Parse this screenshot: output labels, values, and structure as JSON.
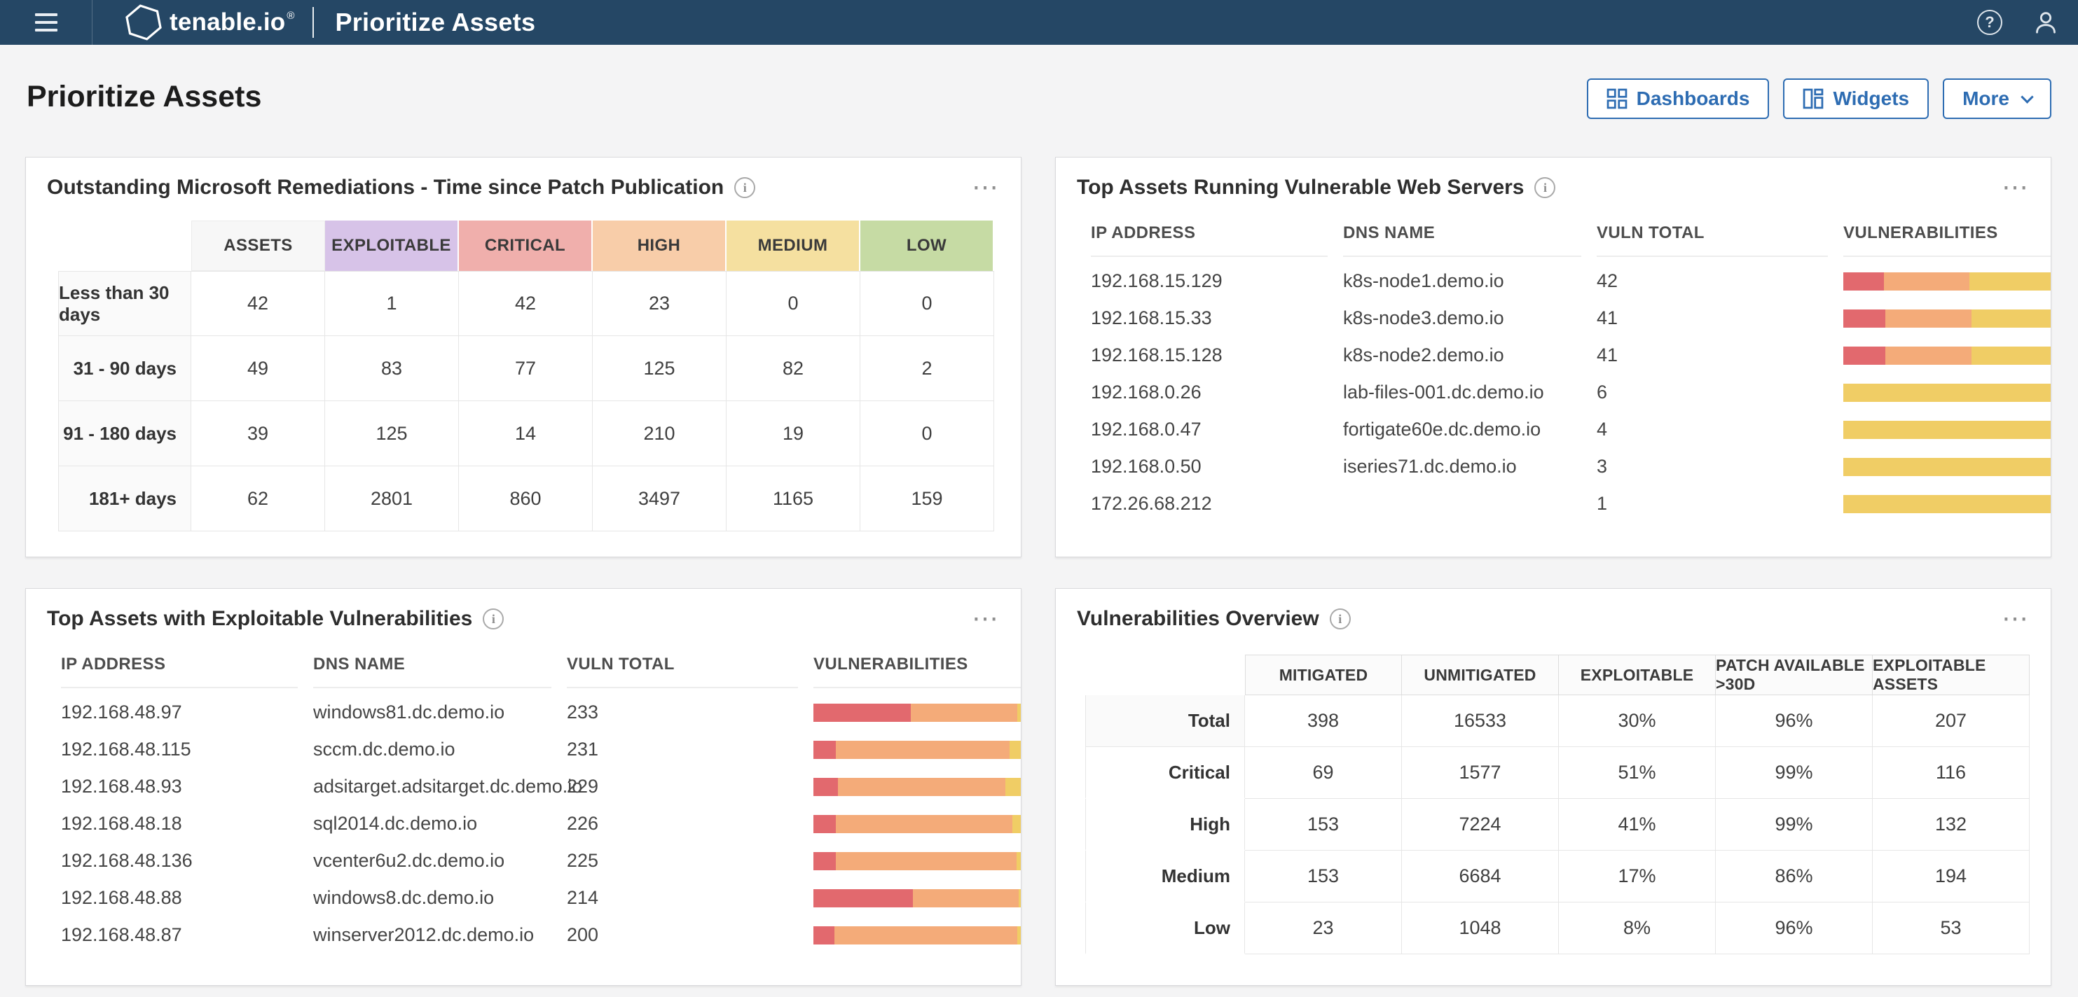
{
  "topbar": {
    "brand": "tenable.io",
    "brand_mark": "®",
    "title": "Prioritize Assets"
  },
  "page": {
    "title": "Prioritize Assets",
    "buttons": {
      "dashboards": "Dashboards",
      "widgets": "Widgets",
      "more": "More"
    }
  },
  "colors": {
    "topbar_bg": "#254765",
    "accent_blue": "#2d6cb2",
    "header_exploitable": "#d7c3e8",
    "header_critical": "#f0afac",
    "header_high": "#f8cda9",
    "header_medium": "#f5e0a0",
    "header_low": "#c6dba4",
    "bar_critical": "#e2696e",
    "bar_high": "#f4ab79",
    "bar_medium": "#f0cd65",
    "bar_low": "#93bd68"
  },
  "widgets": {
    "remediations": {
      "title": "Outstanding Microsoft Remediations - Time since Patch Publication",
      "columns": [
        "ASSETS",
        "EXPLOITABLE",
        "CRITICAL",
        "HIGH",
        "MEDIUM",
        "LOW"
      ],
      "rows": [
        {
          "label": "Less than 30 days",
          "values": [
            "42",
            "1",
            "42",
            "23",
            "0",
            "0"
          ]
        },
        {
          "label": "31 - 90 days",
          "values": [
            "49",
            "83",
            "77",
            "125",
            "82",
            "2"
          ]
        },
        {
          "label": "91 - 180 days",
          "values": [
            "39",
            "125",
            "14",
            "210",
            "19",
            "0"
          ]
        },
        {
          "label": "181+ days",
          "values": [
            "62",
            "2801",
            "860",
            "3497",
            "1165",
            "159"
          ]
        }
      ]
    },
    "web_servers": {
      "title": "Top Assets Running Vulnerable Web Servers",
      "columns": [
        "IP ADDRESS",
        "DNS NAME",
        "VULN TOTAL",
        "VULNERABILITIES"
      ],
      "rows": [
        {
          "ip": "192.168.15.129",
          "dns": "k8s-node1.demo.io",
          "total": "42",
          "bar": [
            18.5,
            38.5,
            40.5,
            2.5
          ]
        },
        {
          "ip": "192.168.15.33",
          "dns": "k8s-node3.demo.io",
          "total": "41",
          "bar": [
            19,
            39,
            39.5,
            2.5
          ]
        },
        {
          "ip": "192.168.15.128",
          "dns": "k8s-node2.demo.io",
          "total": "41",
          "bar": [
            19,
            39,
            38.5,
            3.5
          ]
        },
        {
          "ip": "192.168.0.26",
          "dns": "lab-files-001.dc.demo.io",
          "total": "6",
          "bar": [
            0,
            0,
            100,
            0
          ]
        },
        {
          "ip": "192.168.0.47",
          "dns": "fortigate60e.dc.demo.io",
          "total": "4",
          "bar": [
            0,
            0,
            100,
            0
          ]
        },
        {
          "ip": "192.168.0.50",
          "dns": "iseries71.dc.demo.io",
          "total": "3",
          "bar": [
            0,
            0,
            100,
            0
          ]
        },
        {
          "ip": "172.26.68.212",
          "dns": "",
          "total": "1",
          "bar": [
            0,
            0,
            100,
            0
          ]
        }
      ]
    },
    "exploitable": {
      "title": "Top Assets with Exploitable Vulnerabilities",
      "columns": [
        "IP ADDRESS",
        "DNS NAME",
        "VULN TOTAL",
        "VULNERABILITIES"
      ],
      "rows": [
        {
          "ip": "192.168.48.97",
          "dns": "windows81.dc.demo.io",
          "total": "233",
          "bar": [
            44,
            48.5,
            7.5,
            0
          ]
        },
        {
          "ip": "192.168.48.115",
          "dns": "sccm.dc.demo.io",
          "total": "231",
          "bar": [
            10,
            79,
            9.5,
            1.5
          ]
        },
        {
          "ip": "192.168.48.93",
          "dns": "adsitarget.adsitarget.dc.demo.io",
          "total": "229",
          "bar": [
            11,
            76,
            11,
            2
          ]
        },
        {
          "ip": "192.168.48.18",
          "dns": "sql2014.dc.demo.io",
          "total": "226",
          "bar": [
            10,
            80,
            10,
            0
          ]
        },
        {
          "ip": "192.168.48.136",
          "dns": "vcenter6u2.dc.demo.io",
          "total": "225",
          "bar": [
            10,
            82,
            6,
            2
          ]
        },
        {
          "ip": "192.168.48.88",
          "dns": "windows8.dc.demo.io",
          "total": "214",
          "bar": [
            45,
            48,
            7,
            0
          ]
        },
        {
          "ip": "192.168.48.87",
          "dns": "winserver2012.dc.demo.io",
          "total": "200",
          "bar": [
            9.5,
            83,
            7.5,
            0
          ]
        }
      ]
    },
    "overview": {
      "title": "Vulnerabilities Overview",
      "columns": [
        "MITIGATED",
        "UNMITIGATED",
        "EXPLOITABLE",
        "PATCH AVAILABLE >30D",
        "EXPLOITABLE ASSETS"
      ],
      "rows": [
        {
          "label": "Total",
          "values": [
            "398",
            "16533",
            "30%",
            "96%",
            "207"
          ]
        },
        {
          "label": "Critical",
          "values": [
            "69",
            "1577",
            "51%",
            "99%",
            "116"
          ]
        },
        {
          "label": "High",
          "values": [
            "153",
            "7224",
            "41%",
            "99%",
            "132"
          ]
        },
        {
          "label": "Medium",
          "values": [
            "153",
            "6684",
            "17%",
            "86%",
            "194"
          ]
        },
        {
          "label": "Low",
          "values": [
            "23",
            "1048",
            "8%",
            "96%",
            "53"
          ]
        }
      ]
    }
  }
}
